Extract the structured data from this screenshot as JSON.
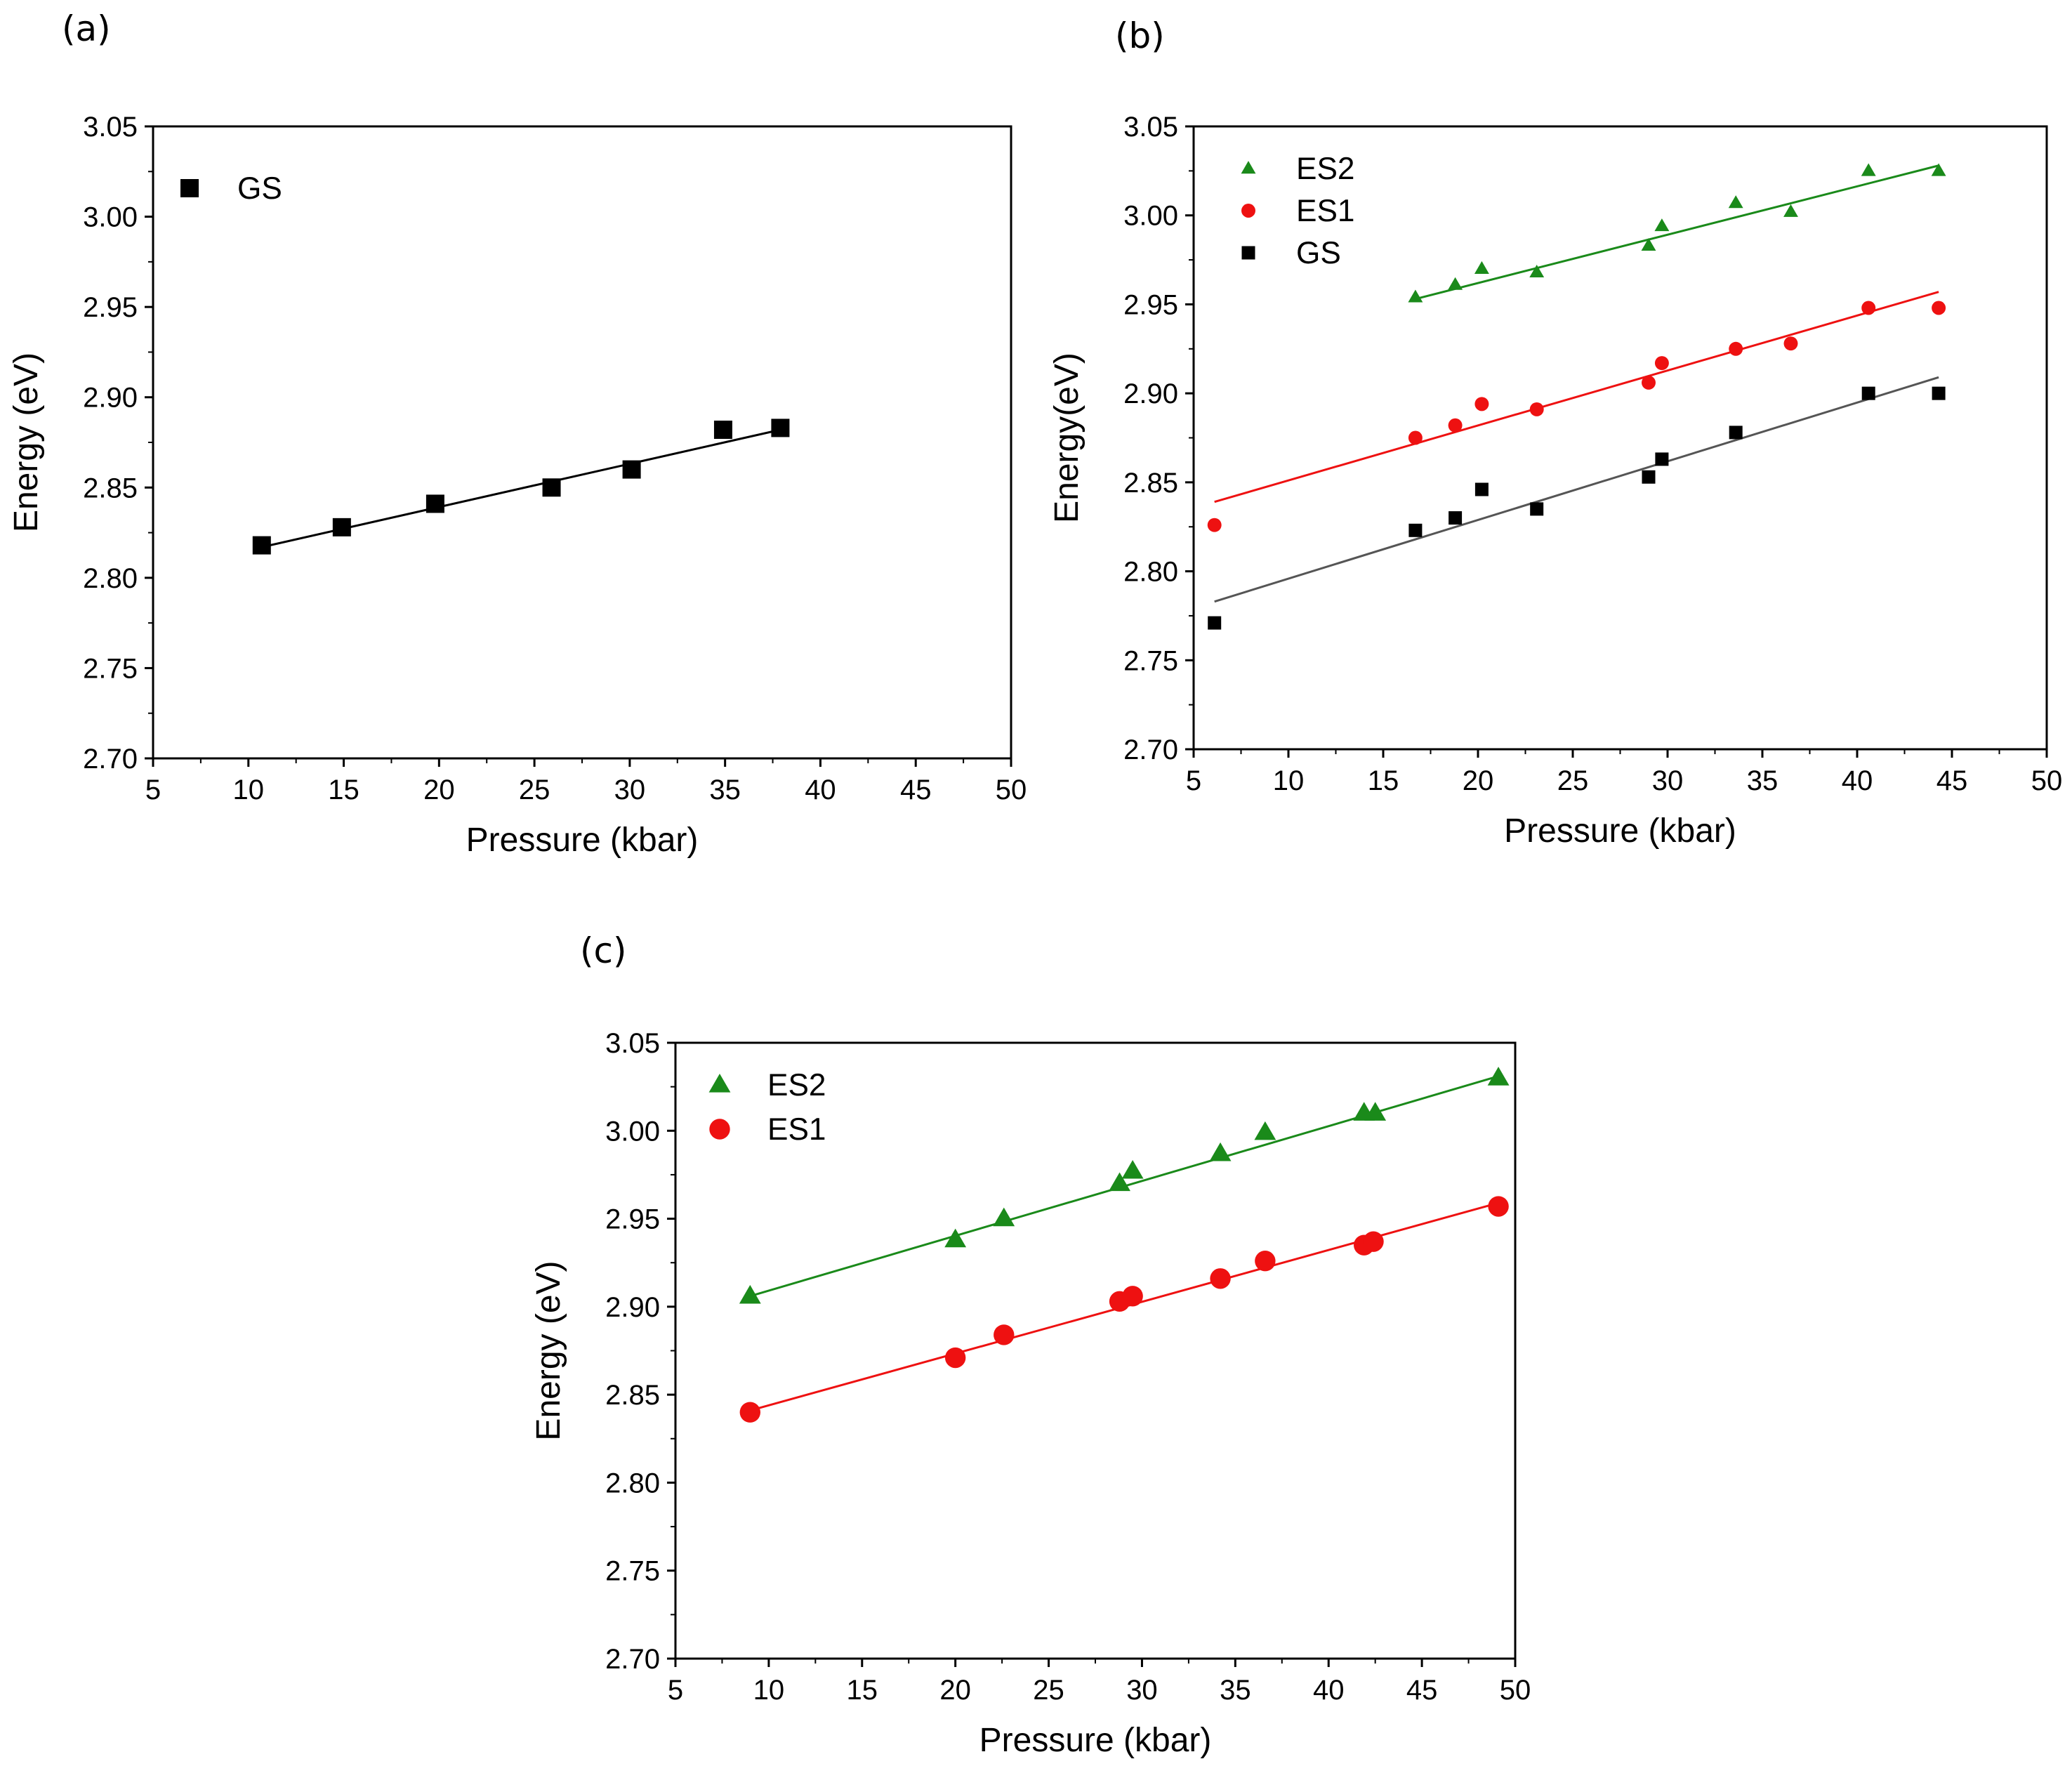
{
  "chart_data": [
    {
      "panel": "(a)",
      "type": "scatter",
      "xlabel": "Pressure (kbar)",
      "ylabel": "Energy (eV)",
      "xlim": [
        5,
        50
      ],
      "ylim": [
        2.7,
        3.05
      ],
      "xticks": [
        5,
        10,
        15,
        20,
        25,
        30,
        35,
        40,
        45,
        50
      ],
      "yticks": [
        2.7,
        2.75,
        2.8,
        2.85,
        2.9,
        2.95,
        3.0,
        3.05
      ],
      "xtick_labels": [
        "5",
        "10",
        "15",
        "20",
        "25",
        "30",
        "35",
        "40",
        "45",
        "50"
      ],
      "ytick_labels": [
        "2.70",
        "2.75",
        "2.80",
        "2.85",
        "2.90",
        "2.95",
        "3.00",
        "3.05"
      ],
      "grid": false,
      "legend_position": "top-left",
      "series": [
        {
          "name": "GS",
          "marker": "square",
          "color": "#000000",
          "fit_color": "#000000",
          "x": [
            10.7,
            14.9,
            19.8,
            25.9,
            30.1,
            34.9,
            37.9
          ],
          "y": [
            2.818,
            2.828,
            2.841,
            2.85,
            2.86,
            2.882,
            2.883
          ],
          "fit": {
            "x": [
              10.7,
              37.9
            ],
            "y": [
              2.817,
              2.882
            ]
          }
        }
      ]
    },
    {
      "panel": "(b)",
      "type": "scatter",
      "xlabel": "Pressure (kbar)",
      "ylabel": "Energy(eV)",
      "xlim": [
        5,
        50
      ],
      "ylim": [
        2.7,
        3.05
      ],
      "xticks": [
        5,
        10,
        15,
        20,
        25,
        30,
        35,
        40,
        45,
        50
      ],
      "yticks": [
        2.7,
        2.75,
        2.8,
        2.85,
        2.9,
        2.95,
        3.0,
        3.05
      ],
      "xtick_labels": [
        "5",
        "10",
        "15",
        "20",
        "25",
        "30",
        "35",
        "40",
        "45",
        "50"
      ],
      "ytick_labels": [
        "2.70",
        "2.75",
        "2.80",
        "2.85",
        "2.90",
        "2.95",
        "3.00",
        "3.05"
      ],
      "grid": false,
      "legend_position": "top-left",
      "series": [
        {
          "name": "ES2",
          "marker": "triangle",
          "color": "#1a8a1a",
          "fit_color": "#1a8a1a",
          "x": [
            16.7,
            18.8,
            20.2,
            23.1,
            29.0,
            29.7,
            33.6,
            36.5,
            40.6,
            44.3
          ],
          "y": [
            2.954,
            2.961,
            2.97,
            2.968,
            2.983,
            2.994,
            3.007,
            3.002,
            3.025,
            3.025
          ],
          "fit": {
            "x": [
              16.7,
              44.3
            ],
            "y": [
              2.953,
              3.028
            ]
          }
        },
        {
          "name": "ES1",
          "marker": "circle",
          "color": "#ee1111",
          "fit_color": "#ee1111",
          "x": [
            6.1,
            16.7,
            18.8,
            20.2,
            23.1,
            29.0,
            29.7,
            33.6,
            36.5,
            40.6,
            44.3
          ],
          "y": [
            2.826,
            2.875,
            2.882,
            2.894,
            2.891,
            2.906,
            2.917,
            2.925,
            2.928,
            2.948,
            2.948
          ],
          "fit": {
            "x": [
              6.1,
              44.3
            ],
            "y": [
              2.839,
              2.957
            ]
          }
        },
        {
          "name": "GS",
          "marker": "square",
          "color": "#000000",
          "fit_color": "#555555",
          "x": [
            6.1,
            16.7,
            18.8,
            20.2,
            23.1,
            29.0,
            29.7,
            33.6,
            40.6,
            44.3
          ],
          "y": [
            2.771,
            2.823,
            2.83,
            2.846,
            2.835,
            2.853,
            2.863,
            2.878,
            2.9,
            2.9
          ],
          "fit": {
            "x": [
              6.1,
              44.3
            ],
            "y": [
              2.783,
              2.909
            ]
          }
        }
      ]
    },
    {
      "panel": "(c)",
      "type": "scatter",
      "xlabel": "Pressure (kbar)",
      "ylabel": "Energy (eV)",
      "xlim": [
        5,
        50
      ],
      "ylim": [
        2.7,
        3.05
      ],
      "xticks": [
        5,
        10,
        15,
        20,
        25,
        30,
        35,
        40,
        45,
        50
      ],
      "yticks": [
        2.7,
        2.75,
        2.8,
        2.85,
        2.9,
        2.95,
        3.0,
        3.05
      ],
      "xtick_labels": [
        "5",
        "10",
        "15",
        "20",
        "25",
        "30",
        "35",
        "40",
        "45",
        "50"
      ],
      "ytick_labels": [
        "2.70",
        "2.75",
        "2.80",
        "2.85",
        "2.90",
        "2.95",
        "3.00",
        "3.05"
      ],
      "grid": false,
      "legend_position": "top-left",
      "series": [
        {
          "name": "ES2",
          "marker": "triangle",
          "color": "#1a8a1a",
          "fit_color": "#1a8a1a",
          "x": [
            9.0,
            20.0,
            22.6,
            28.8,
            29.5,
            34.2,
            36.6,
            41.9,
            42.5,
            49.1
          ],
          "y": [
            2.906,
            2.938,
            2.95,
            2.97,
            2.977,
            2.987,
            2.999,
            3.01,
            3.01,
            3.03
          ],
          "fit": {
            "x": [
              9.0,
              49.1
            ],
            "y": [
              2.906,
              3.031
            ]
          }
        },
        {
          "name": "ES1",
          "marker": "circle",
          "color": "#ee1111",
          "fit_color": "#ee1111",
          "x": [
            9.0,
            20.0,
            22.6,
            28.8,
            29.5,
            34.2,
            36.6,
            41.9,
            42.4,
            49.1
          ],
          "y": [
            2.84,
            2.871,
            2.884,
            2.903,
            2.906,
            2.916,
            2.926,
            2.935,
            2.937,
            2.957
          ],
          "fit": {
            "x": [
              9.0,
              49.1
            ],
            "y": [
              2.841,
              2.959
            ]
          }
        }
      ]
    }
  ]
}
